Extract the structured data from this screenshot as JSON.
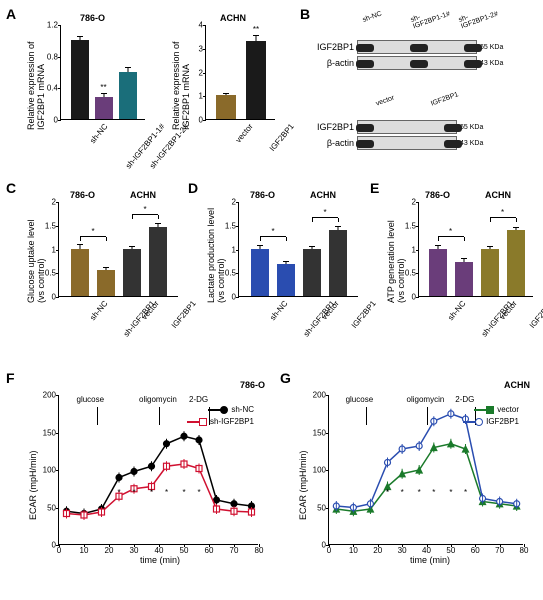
{
  "panelA_left": {
    "title": "786-O",
    "ylabel": "Relative expression of\nIGF2BP1 mRNA",
    "ylim": [
      0,
      1.2
    ],
    "ytick_step": 0.4,
    "categories": [
      "sh-NC",
      "sh-IGF2BP1-1#",
      "sh-IGF2BP1-2#"
    ],
    "values": [
      1.0,
      0.28,
      0.6
    ],
    "errors": [
      0.03,
      0.03,
      0.05
    ],
    "colors": [
      "#1a1a1a",
      "#6a3d7a",
      "#1a6e7a"
    ],
    "sig": [
      "",
      "**",
      ""
    ]
  },
  "panelA_right": {
    "title": "ACHN",
    "ylabel": "Relative expression of\nIGF2BP1 mRNA",
    "ylim": [
      0,
      4
    ],
    "ytick_step": 1,
    "categories": [
      "vector",
      "IGF2BP1"
    ],
    "values": [
      1.0,
      3.3
    ],
    "errors": [
      0.05,
      0.2
    ],
    "colors": [
      "#8a6a2a",
      "#1a1a1a"
    ],
    "sig": [
      "",
      "**"
    ]
  },
  "panelB": {
    "top_lanes": [
      "sh-NC",
      "sh-IGF2BP1-1#",
      "sh-IGF2BP1-2#"
    ],
    "bottom_lanes": [
      "vector",
      "IGF2BP1"
    ],
    "rows_top": [
      {
        "label": "IGF2BP1",
        "kda": "65 KDa"
      },
      {
        "label": "β-actin",
        "kda": "43 KDa"
      }
    ],
    "rows_bottom": [
      {
        "label": "IGF2BP1",
        "kda": "65 KDa"
      },
      {
        "label": "β-actin",
        "kda": "43 KDa"
      }
    ]
  },
  "panelC": {
    "title_left": "786-O",
    "title_right": "ACHN",
    "ylabel": "Glucose uptake level\n(vs control)",
    "ylim": [
      0,
      2.0
    ],
    "ytick_step": 0.5,
    "categories": [
      "sh-NC",
      "sh-IGF2BP1",
      "vector",
      "IGF2BP1"
    ],
    "values": [
      1.0,
      0.55,
      1.0,
      1.45
    ],
    "errors": [
      0.07,
      0.05,
      0.04,
      0.06
    ],
    "colors": [
      "#8a6a2a",
      "#8a6a2a",
      "#333333",
      "#333333"
    ],
    "sig_pairs": [
      [
        0,
        1,
        "*"
      ],
      [
        2,
        3,
        "*"
      ]
    ]
  },
  "panelD": {
    "title_left": "786-O",
    "title_right": "ACHN",
    "ylabel": "Lactate production level\n(vs control)",
    "ylim": [
      0,
      2.0
    ],
    "ytick_step": 0.5,
    "categories": [
      "sh-NC",
      "sh-IGF2BP1",
      "vector",
      "IGF2BP1"
    ],
    "values": [
      1.0,
      0.68,
      1.0,
      1.4
    ],
    "errors": [
      0.06,
      0.04,
      0.04,
      0.05
    ],
    "colors": [
      "#2a4db0",
      "#2a4db0",
      "#333333",
      "#333333"
    ],
    "sig_pairs": [
      [
        0,
        1,
        "*"
      ],
      [
        2,
        3,
        "*"
      ]
    ]
  },
  "panelE": {
    "title_left": "786-O",
    "title_right": "ACHN",
    "ylabel": "ATP generation level\n(vs control)",
    "ylim": [
      0,
      2.0
    ],
    "ytick_step": 0.5,
    "categories": [
      "sh-NC",
      "sh-IGF2BP1",
      "vector",
      "IGF2BP1"
    ],
    "values": [
      1.0,
      0.72,
      1.0,
      1.38
    ],
    "errors": [
      0.05,
      0.05,
      0.04,
      0.05
    ],
    "colors": [
      "#6a3d7a",
      "#6a3d7a",
      "#8a7a2a",
      "#8a7a2a"
    ],
    "sig_pairs": [
      [
        0,
        1,
        "*"
      ],
      [
        2,
        3,
        "*"
      ]
    ]
  },
  "panelF": {
    "title": "786-O",
    "ylabel": "ECAR (mpH/min)",
    "xlabel": "time (min)",
    "xlim": [
      0,
      80
    ],
    "xtick_step": 10,
    "ylim": [
      0,
      200
    ],
    "ytick_step": 50,
    "annotations": [
      {
        "label": "glucose",
        "x": 15
      },
      {
        "label": "oligomycin",
        "x": 40
      },
      {
        "label": "2-DG",
        "x": 60
      }
    ],
    "series": [
      {
        "name": "sh-NC",
        "color": "#000000",
        "marker": "circle-filled",
        "x": [
          3,
          10,
          17,
          24,
          30,
          37,
          43,
          50,
          56,
          63,
          70,
          77
        ],
        "y": [
          45,
          42,
          48,
          90,
          98,
          105,
          135,
          145,
          140,
          60,
          55,
          52
        ]
      },
      {
        "name": "sh-IGF2BP1",
        "color": "#d01030",
        "marker": "square-open",
        "x": [
          3,
          10,
          17,
          24,
          30,
          37,
          43,
          50,
          56,
          63,
          70,
          77
        ],
        "y": [
          42,
          40,
          44,
          65,
          75,
          78,
          105,
          108,
          102,
          48,
          45,
          44
        ]
      }
    ],
    "sig_x": [
      24,
      30,
      37,
      43,
      50,
      56
    ]
  },
  "panelG": {
    "title": "ACHN",
    "ylabel": "ECAR (mpH/min)",
    "xlabel": "time (min)",
    "xlim": [
      0,
      80
    ],
    "xtick_step": 10,
    "ylim": [
      0,
      200
    ],
    "ytick_step": 50,
    "annotations": [
      {
        "label": "glucose",
        "x": 15
      },
      {
        "label": "oligomycin",
        "x": 40
      },
      {
        "label": "2-DG",
        "x": 60
      }
    ],
    "series": [
      {
        "name": "vector",
        "color": "#1a7a2a",
        "marker": "triangle-filled",
        "x": [
          3,
          10,
          17,
          24,
          30,
          37,
          43,
          50,
          56,
          63,
          70,
          77
        ],
        "y": [
          48,
          45,
          48,
          78,
          95,
          100,
          130,
          135,
          128,
          58,
          55,
          52
        ]
      },
      {
        "name": "IGF2BP1",
        "color": "#2a4db0",
        "marker": "circle-open",
        "x": [
          3,
          10,
          17,
          24,
          30,
          37,
          43,
          50,
          56,
          63,
          70,
          77
        ],
        "y": [
          52,
          50,
          55,
          110,
          128,
          132,
          165,
          175,
          168,
          62,
          58,
          55
        ]
      }
    ],
    "sig_x": [
      24,
      30,
      37,
      43,
      50,
      56
    ]
  },
  "labels": {
    "A": "A",
    "B": "B",
    "C": "C",
    "D": "D",
    "E": "E",
    "F": "F",
    "G": "G"
  }
}
